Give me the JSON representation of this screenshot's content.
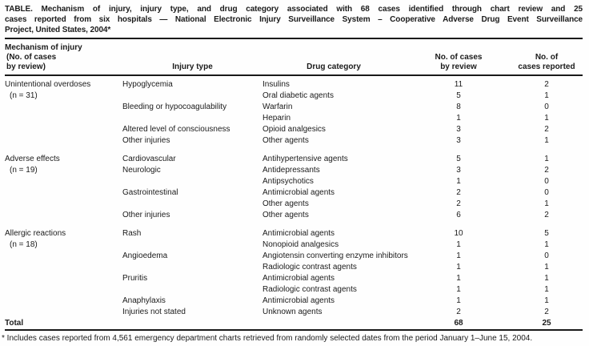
{
  "title": {
    "lines": [
      "TABLE. Mechanism of injury, injury type, and drug category associated with 68 cases identified through chart review and 25",
      "cases reported from six hospitals — National Electronic Injury Surveillance System – Cooperative Adverse Drug Event Surveillance",
      "Project, United States, 2004*"
    ]
  },
  "header": {
    "col1_lines": [
      "Mechanism of injury",
      "(No. of cases",
      "by review)"
    ],
    "col2": "Injury type",
    "col3": "Drug category",
    "col4_lines": [
      "No. of cases",
      "by review"
    ],
    "col5_lines": [
      "No. of",
      "cases reported"
    ]
  },
  "sections": [
    {
      "mechanism": "Unintentional overdoses",
      "n_label": "(n = 31)",
      "rows": [
        {
          "injury_type": "Hypoglycemia",
          "drug_category": "Insulins",
          "cases_by_review": "11",
          "cases_reported": "2"
        },
        {
          "injury_type": "",
          "drug_category": "Oral diabetic agents",
          "cases_by_review": "5",
          "cases_reported": "1"
        },
        {
          "injury_type": "Bleeding or hypocoagulability",
          "drug_category": "Warfarin",
          "cases_by_review": "8",
          "cases_reported": "0"
        },
        {
          "injury_type": "",
          "drug_category": "Heparin",
          "cases_by_review": "1",
          "cases_reported": "1"
        },
        {
          "injury_type": "Altered level of consciousness",
          "drug_category": "Opioid analgesics",
          "cases_by_review": "3",
          "cases_reported": "2"
        },
        {
          "injury_type": "Other injuries",
          "drug_category": "Other agents",
          "cases_by_review": "3",
          "cases_reported": "1"
        }
      ]
    },
    {
      "mechanism": "Adverse effects",
      "n_label": "(n = 19)",
      "rows": [
        {
          "injury_type": "Cardiovascular",
          "drug_category": "Antihypertensive agents",
          "cases_by_review": "5",
          "cases_reported": "1"
        },
        {
          "injury_type": "Neurologic",
          "drug_category": "Antidepressants",
          "cases_by_review": "3",
          "cases_reported": "2"
        },
        {
          "injury_type": "",
          "drug_category": "Antipsychotics",
          "cases_by_review": "1",
          "cases_reported": "0"
        },
        {
          "injury_type": "Gastrointestinal",
          "drug_category": "Antimicrobial agents",
          "cases_by_review": "2",
          "cases_reported": "0"
        },
        {
          "injury_type": "",
          "drug_category": "Other agents",
          "cases_by_review": "2",
          "cases_reported": "1"
        },
        {
          "injury_type": "Other injuries",
          "drug_category": "Other agents",
          "cases_by_review": "6",
          "cases_reported": "2"
        }
      ]
    },
    {
      "mechanism": "Allergic reactions",
      "n_label": "(n = 18)",
      "rows": [
        {
          "injury_type": "Rash",
          "drug_category": "Antimicrobial agents",
          "cases_by_review": "10",
          "cases_reported": "5"
        },
        {
          "injury_type": "",
          "drug_category": "Nonopioid analgesics",
          "cases_by_review": "1",
          "cases_reported": "1"
        },
        {
          "injury_type": "Angioedema",
          "drug_category": "Angiotensin converting enzyme inhibitors",
          "cases_by_review": "1",
          "cases_reported": "0"
        },
        {
          "injury_type": "",
          "drug_category": "Radiologic contrast agents",
          "cases_by_review": "1",
          "cases_reported": "1"
        },
        {
          "injury_type": "Pruritis",
          "drug_category": "Antimicrobial agents",
          "cases_by_review": "1",
          "cases_reported": "1"
        },
        {
          "injury_type": "",
          "drug_category": "Radiologic contrast agents",
          "cases_by_review": "1",
          "cases_reported": "1"
        },
        {
          "injury_type": "Anaphylaxis",
          "drug_category": "Antimicrobial agents",
          "cases_by_review": "1",
          "cases_reported": "1"
        },
        {
          "injury_type": "Injuries not stated",
          "drug_category": "Unknown agents",
          "cases_by_review": "2",
          "cases_reported": "2"
        }
      ]
    }
  ],
  "total": {
    "label": "Total",
    "cases_by_review": "68",
    "cases_reported": "25"
  },
  "footnote": "* Includes cases reported from 4,561 emergency department charts retrieved from randomly selected dates from the period January 1–June 15, 2004.",
  "colors": {
    "text": "#1b1b1b",
    "rule": "#1a1a1a",
    "background": "#fefefe"
  }
}
